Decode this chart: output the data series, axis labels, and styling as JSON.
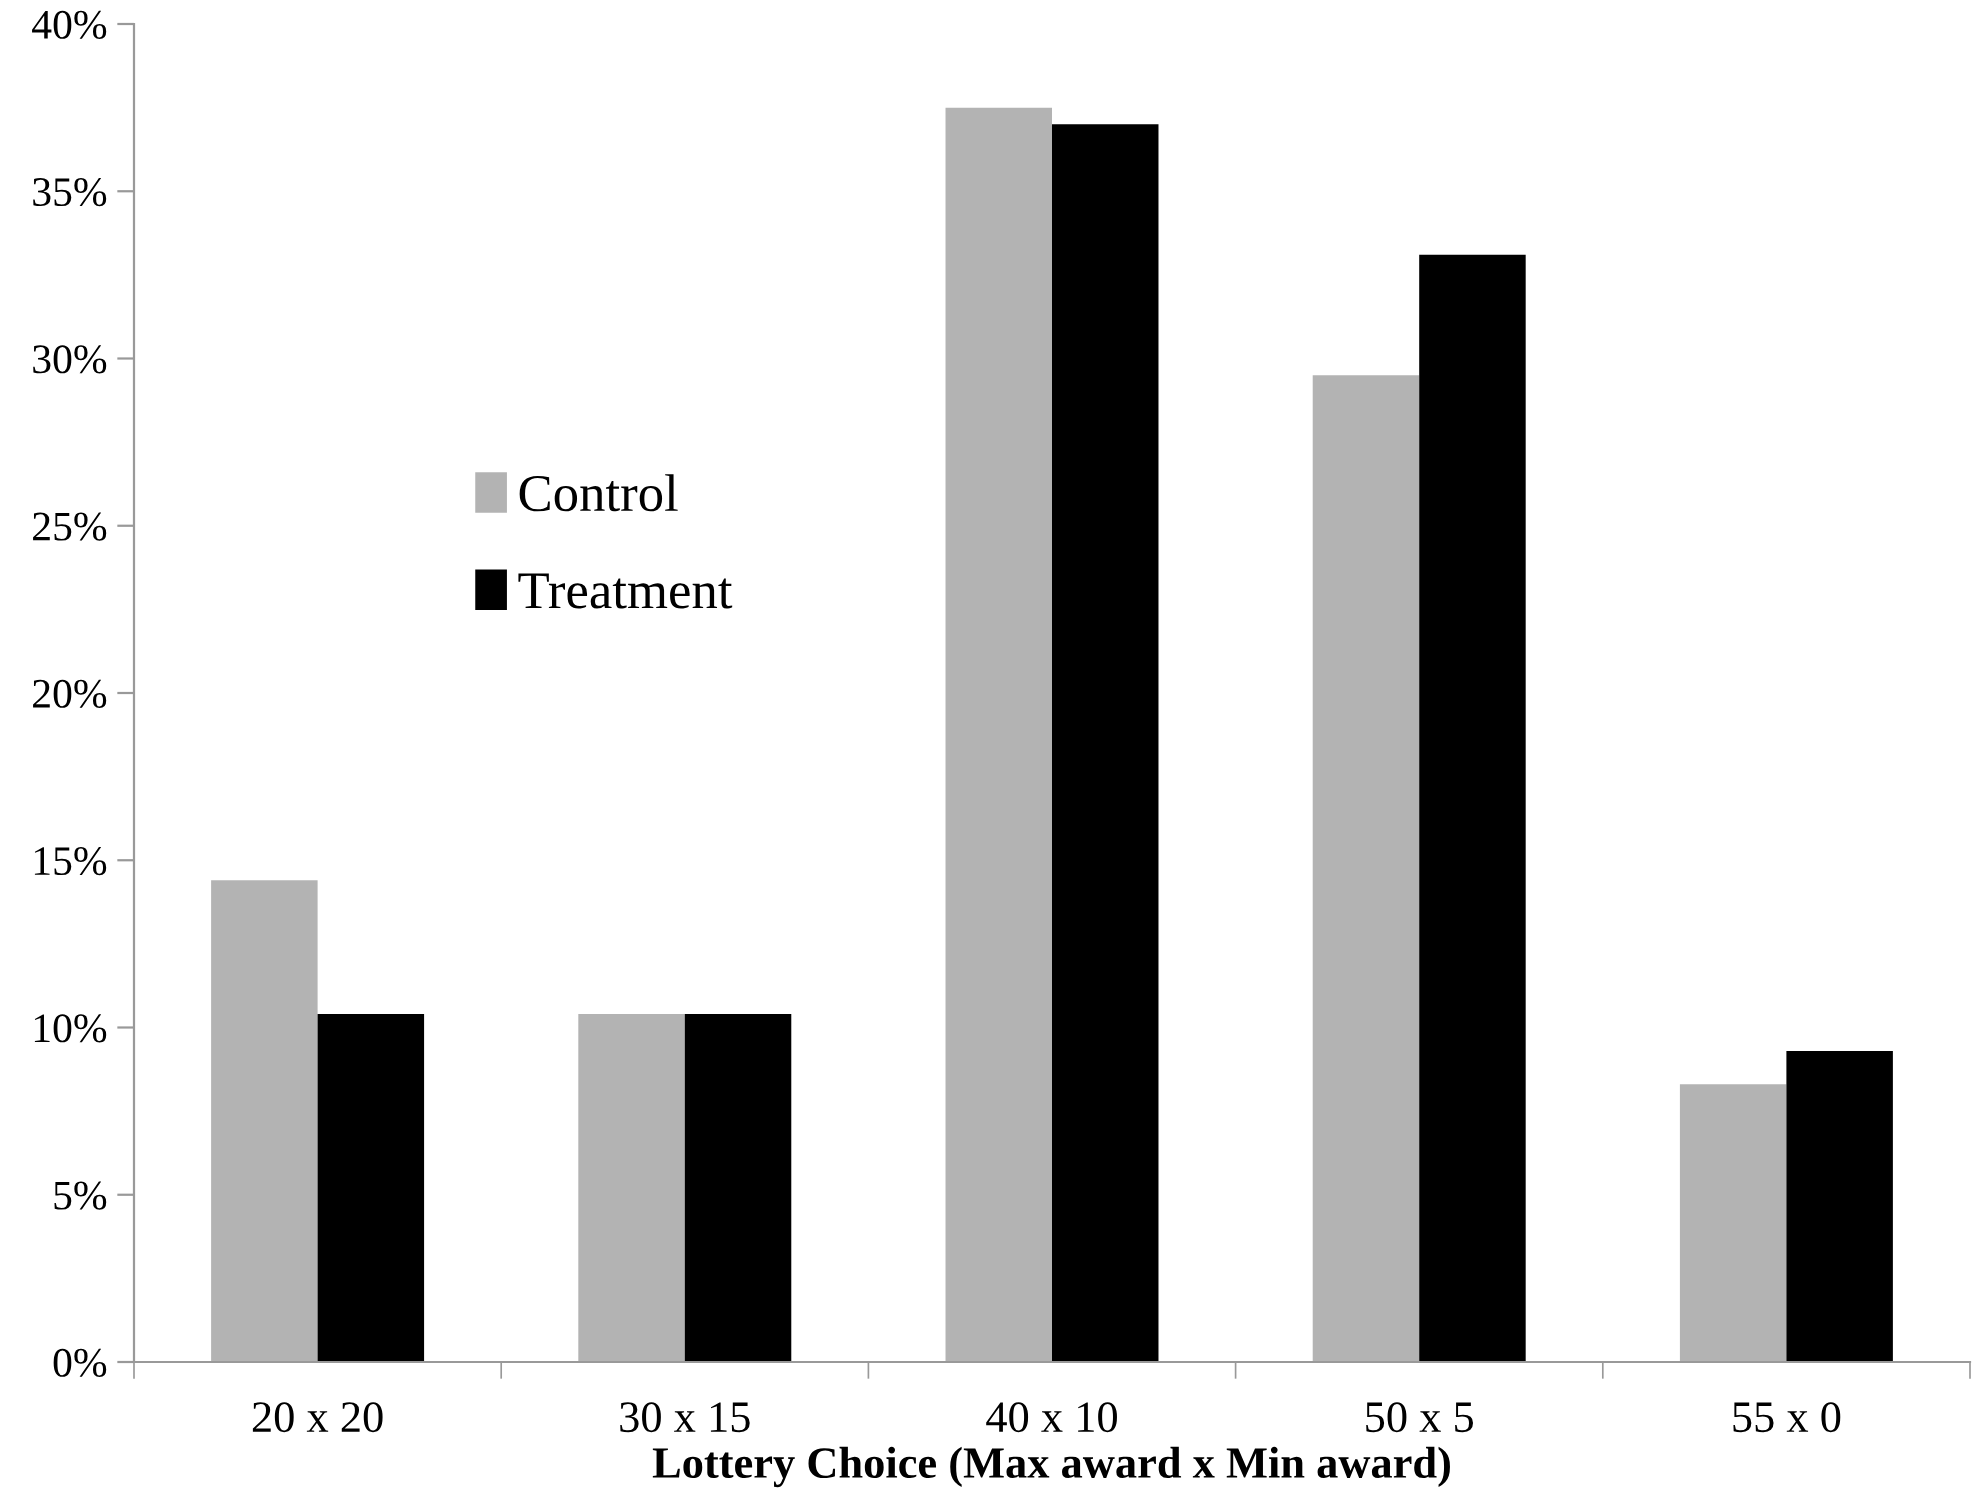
{
  "chart_data": {
    "type": "bar",
    "xlabel": "Lottery Choice (Max award x Min award)",
    "categories": [
      "20 x 20",
      "30 x 15",
      "40 x 10",
      "50 x 5",
      "55 x 0"
    ],
    "series": [
      {
        "name": "Control",
        "color": "#b3b3b3",
        "values": [
          14.4,
          10.4,
          37.5,
          29.5,
          8.3
        ]
      },
      {
        "name": "Treatment",
        "color": "#000000",
        "values": [
          10.4,
          10.4,
          37.0,
          33.1,
          9.3
        ]
      }
    ],
    "ylim": [
      0,
      40
    ],
    "yticks": [
      {
        "value": 0,
        "label": "0%"
      },
      {
        "value": 5,
        "label": "5%"
      },
      {
        "value": 10,
        "label": "10%"
      },
      {
        "value": 15,
        "label": "15%"
      },
      {
        "value": 20,
        "label": "20%"
      },
      {
        "value": 25,
        "label": "25%"
      },
      {
        "value": 30,
        "label": "30%"
      },
      {
        "value": 35,
        "label": "35%"
      },
      {
        "value": 40,
        "label": "40%"
      }
    ],
    "grid": false,
    "legend": "left"
  }
}
